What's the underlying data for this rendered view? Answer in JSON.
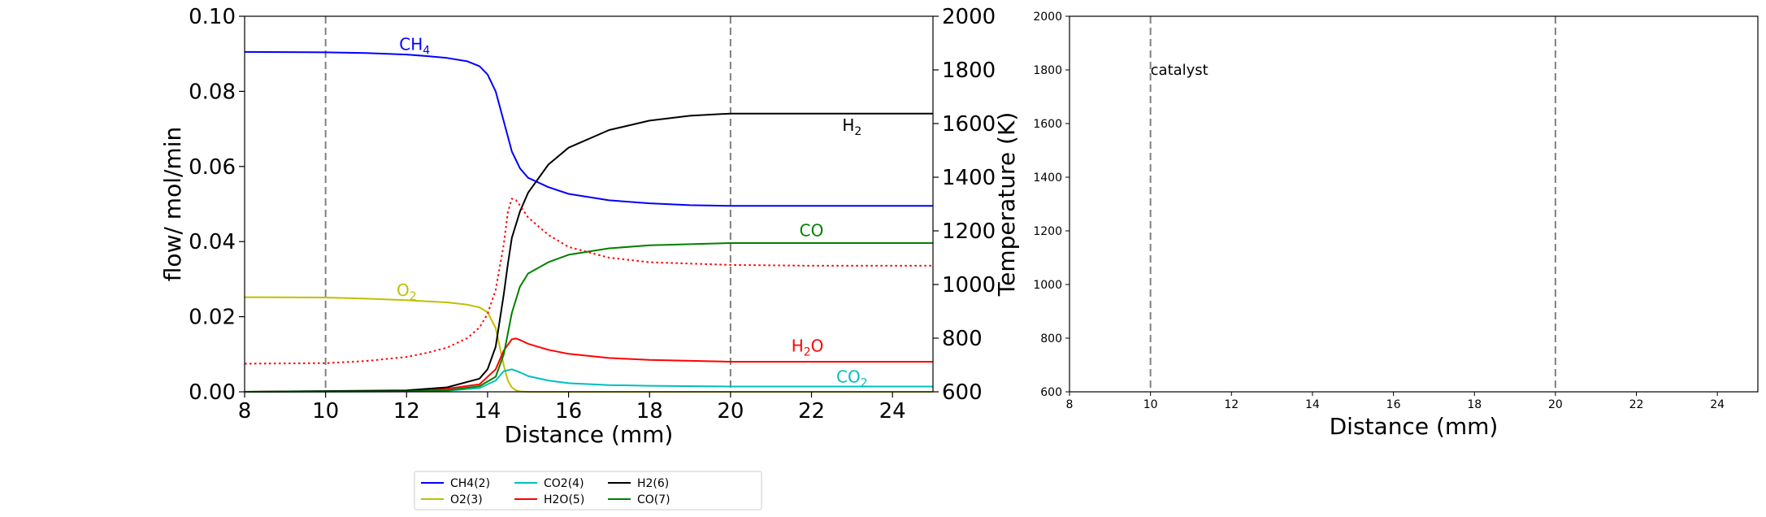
{
  "chart_data": [
    {
      "type": "line",
      "xlabel": "Distance (mm)",
      "ylabel": "flow/ mol/min",
      "y2label": "Temperature (K)",
      "xlim": [
        8,
        25
      ],
      "ylim": [
        0,
        0.1
      ],
      "y2lim": [
        600,
        2000
      ],
      "xticks": [
        "8",
        "10",
        "12",
        "14",
        "16",
        "18",
        "20",
        "22",
        "24"
      ],
      "yticks": [
        "0.00",
        "0.02",
        "0.04",
        "0.06",
        "0.08",
        "0.10"
      ],
      "y2ticks": [
        "600",
        "800",
        "1000",
        "1200",
        "1400",
        "1600",
        "1800",
        "2000"
      ],
      "vlines": [
        10,
        20
      ],
      "grid": false,
      "legend_position": "bottom-center",
      "series": [
        {
          "name": "CH4(2)",
          "label": "CH4",
          "color": "#0000ff",
          "x": [
            8,
            10,
            11,
            12,
            12.5,
            13,
            13.5,
            13.8,
            14,
            14.2,
            14.4,
            14.6,
            14.8,
            15,
            15.5,
            16,
            17,
            18,
            19,
            20,
            22,
            25
          ],
          "y": [
            0.0905,
            0.0904,
            0.0902,
            0.0898,
            0.0894,
            0.0889,
            0.088,
            0.0867,
            0.0845,
            0.08,
            0.072,
            0.064,
            0.0595,
            0.057,
            0.0545,
            0.0527,
            0.051,
            0.0502,
            0.0497,
            0.0495,
            0.0495,
            0.0495
          ]
        },
        {
          "name": "O2(3)",
          "label": "O2",
          "color": "#bfbf00",
          "x": [
            8,
            10,
            11,
            12,
            13,
            13.5,
            13.8,
            14,
            14.2,
            14.3,
            14.4,
            14.5,
            14.6,
            14.7,
            14.8,
            15,
            25
          ],
          "y": [
            0.0252,
            0.0251,
            0.0248,
            0.0244,
            0.0238,
            0.0232,
            0.0225,
            0.0212,
            0.017,
            0.012,
            0.007,
            0.003,
            0.0012,
            0.0004,
            0.0001,
            0.0,
            0.0
          ]
        },
        {
          "name": "CO2(4)",
          "label": "CO2",
          "color": "#00bfbf",
          "x": [
            8,
            12,
            13,
            13.8,
            14.2,
            14.4,
            14.6,
            14.8,
            15,
            15.5,
            16,
            17,
            18,
            20,
            25
          ],
          "y": [
            0.0,
            0.0001,
            0.0003,
            0.001,
            0.003,
            0.0055,
            0.006,
            0.0052,
            0.0042,
            0.003,
            0.0023,
            0.0018,
            0.0016,
            0.0014,
            0.0014
          ]
        },
        {
          "name": "H2O(5)",
          "label": "H2O",
          "color": "#ff0000",
          "x": [
            8,
            12,
            13,
            13.8,
            14.2,
            14.4,
            14.6,
            14.7,
            14.8,
            15,
            15.5,
            16,
            17,
            18,
            20,
            25
          ],
          "y": [
            0.0,
            0.0003,
            0.0008,
            0.002,
            0.006,
            0.011,
            0.014,
            0.0142,
            0.0138,
            0.0128,
            0.0112,
            0.0101,
            0.009,
            0.0085,
            0.008,
            0.008
          ]
        },
        {
          "name": "H2(6)",
          "label": "H2",
          "color": "#000000",
          "x": [
            8,
            12,
            13,
            13.8,
            14,
            14.2,
            14.4,
            14.5,
            14.6,
            14.8,
            15,
            15.5,
            16,
            17,
            18,
            19,
            20,
            25
          ],
          "y": [
            0.0,
            0.0004,
            0.0012,
            0.0035,
            0.006,
            0.012,
            0.026,
            0.034,
            0.041,
            0.048,
            0.053,
            0.0605,
            0.065,
            0.0697,
            0.0722,
            0.0735,
            0.0741,
            0.0741
          ]
        },
        {
          "name": "CO(7)",
          "label": "CO",
          "color": "#008000",
          "x": [
            8,
            12,
            13,
            13.8,
            14.2,
            14.4,
            14.6,
            14.8,
            15,
            15.5,
            16,
            17,
            18,
            20,
            25
          ],
          "y": [
            0.0,
            0.0001,
            0.0004,
            0.0015,
            0.004,
            0.01,
            0.021,
            0.028,
            0.0315,
            0.0345,
            0.0365,
            0.0382,
            0.039,
            0.0396,
            0.0396
          ]
        },
        {
          "name": "Temperature",
          "color": "#ff0000",
          "dashed": true,
          "axis": "right",
          "x": [
            8,
            10,
            11,
            12,
            12.5,
            13,
            13.5,
            13.8,
            14,
            14.2,
            14.4,
            14.5,
            14.6,
            14.7,
            14.8,
            15,
            15.5,
            16,
            17,
            18,
            20,
            22,
            25
          ],
          "y": [
            705,
            707,
            715,
            730,
            745,
            765,
            800,
            840,
            890,
            980,
            1150,
            1270,
            1320,
            1315,
            1295,
            1250,
            1185,
            1140,
            1100,
            1083,
            1073,
            1070,
            1070
          ]
        }
      ],
      "annotations": [
        {
          "base": "CH",
          "sub": "4",
          "x": 12.2,
          "y": 0.091,
          "color": "#0000ff"
        },
        {
          "base": "O",
          "sub": "2",
          "x": 12.0,
          "y": 0.0255,
          "color": "#bfbf00"
        },
        {
          "base": "H",
          "sub": "2",
          "x": 23.0,
          "y": 0.0695,
          "color": "#000000"
        },
        {
          "base": "CO",
          "sub": "",
          "x": 22.0,
          "y": 0.0415,
          "color": "#008000"
        },
        {
          "base": "H",
          "sub": "2",
          "tail": "O",
          "x": 21.9,
          "y": 0.0107,
          "color": "#ff0000"
        },
        {
          "base": "CO",
          "sub": "2",
          "x": 23.0,
          "y": 0.0025,
          "color": "#00bfbf"
        }
      ]
    },
    {
      "type": "line",
      "xlabel": "Distance (mm)",
      "ylabel": "",
      "xlim": [
        8,
        25
      ],
      "ylim": [
        600,
        2000
      ],
      "xticks": [
        "8",
        "10",
        "12",
        "14",
        "16",
        "18",
        "20",
        "22",
        "24"
      ],
      "yticks": [
        "600",
        "800",
        "1000",
        "1200",
        "1400",
        "1600",
        "1800",
        "2000"
      ],
      "vlines": [
        10,
        20
      ],
      "grid": false,
      "series": [],
      "annotations": [
        {
          "text": "catalyst",
          "x": 10,
          "y": 1800
        }
      ]
    }
  ]
}
